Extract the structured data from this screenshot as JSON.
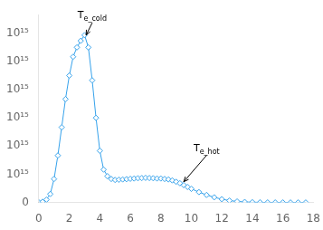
{
  "chart_data": {
    "type": "line",
    "x": [
      0.0,
      0.25,
      0.5,
      0.75,
      1.0,
      1.25,
      1.5,
      1.75,
      2.0,
      2.25,
      2.5,
      2.75,
      3.0,
      3.25,
      3.5,
      3.75,
      4.0,
      4.25,
      4.5,
      4.75,
      5.0,
      5.25,
      5.5,
      5.75,
      6.0,
      6.25,
      6.5,
      6.75,
      7.0,
      7.25,
      7.5,
      7.75,
      8.0,
      8.25,
      8.5,
      8.75,
      9.0,
      9.25,
      9.5,
      9.75,
      10.0,
      10.5,
      11.0,
      11.5,
      12.0,
      12.5,
      13.0,
      13.5,
      14.0,
      14.5,
      15.0,
      15.5,
      16.0,
      16.5,
      17.0,
      17.5
    ],
    "values": [
      20000000000000.0,
      80000000000000.0,
      300000000000000.0,
      900000000000000.0,
      2500000000000000.0,
      5000000000000000.0,
      8000000000000000.0,
      1.1e+16,
      1.35e+16,
      1.55e+16,
      1.65e+16,
      1.72e+16,
      1.78e+16,
      1.65e+16,
      1.3e+16,
      9000000000000000.0,
      5500000000000000.0,
      3500000000000000.0,
      2800000000000000.0,
      2500000000000000.0,
      2400000000000000.0,
      2420000000000000.0,
      2450000000000000.0,
      2480000000000000.0,
      2520000000000000.0,
      2550000000000000.0,
      2580000000000000.0,
      2600000000000000.0,
      2620000000000000.0,
      2600000000000000.0,
      2580000000000000.0,
      2550000000000000.0,
      2550000000000000.0,
      2500000000000000.0,
      2450000000000000.0,
      2350000000000000.0,
      2200000000000000.0,
      2050000000000000.0,
      1850000000000000.0,
      1650000000000000.0,
      1450000000000000.0,
      1100000000000000.0,
      800000000000000.0,
      550000000000000.0,
      350000000000000.0,
      200000000000000.0,
      110000000000000.0,
      55000000000000.0,
      28000000000000.0,
      13000000000000.0,
      5500000000000.0,
      2500000000000.0,
      1000000000000.0,
      350000000000.0,
      100000000000.0,
      5000000000.0
    ],
    "marker": "diamond",
    "xlim": [
      0,
      18
    ],
    "xticks": [
      0,
      2,
      4,
      6,
      8,
      10,
      12,
      14,
      16,
      18
    ],
    "ylim": [
      0,
      2e+16
    ],
    "yticks": [
      0,
      {
        "value": 3000000000000000.0,
        "label": "10¹⁵"
      },
      {
        "value": 6000000000000000.0,
        "label": "10¹⁵"
      },
      {
        "value": 9000000000000000.0,
        "label": "10¹⁵"
      },
      {
        "value": 1.2e+16,
        "label": "10¹⁵"
      },
      {
        "value": 1.5e+16,
        "label": "10¹⁵"
      },
      {
        "value": 1.8e+16,
        "label": "10¹⁵"
      }
    ],
    "grid": false,
    "legend": false,
    "annotations": [
      {
        "text": "Te_cold",
        "x": 3.1,
        "y": 1.78e+16,
        "text_x": 3.5,
        "text_y": 1.96e+16
      },
      {
        "text": "Te_hot",
        "x": 9.5,
        "y": 2200000000000000.0,
        "text_x": 11.0,
        "text_y": 5500000000000000.0
      }
    ]
  }
}
